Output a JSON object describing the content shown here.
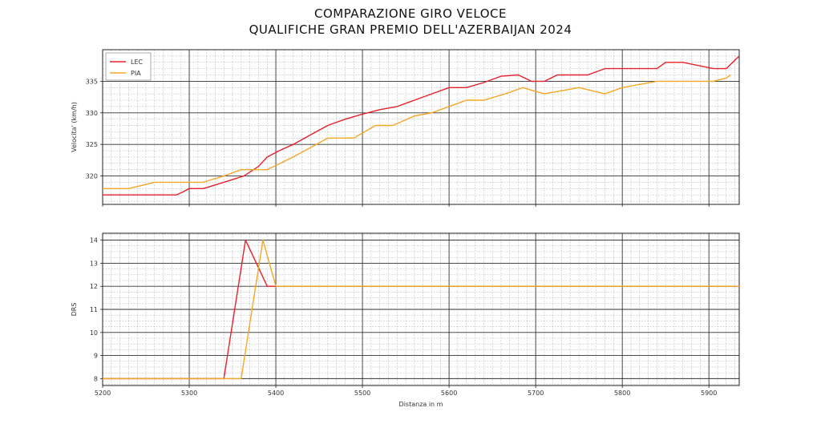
{
  "title": {
    "line1": "COMPARAZIONE GIRO VELOCE",
    "line2": "QUALIFICHE GRAN PREMIO DELL'AZERBAIJAN 2024"
  },
  "colors": {
    "LEC": "#e8202a",
    "PIA": "#f5a623"
  },
  "chart_data": [
    {
      "type": "line",
      "ylabel": "Velocita' (km/h)",
      "xlim": [
        5200,
        5935
      ],
      "ylim": [
        315.5,
        340
      ],
      "xticks": [
        5200,
        5300,
        5400,
        5500,
        5600,
        5700,
        5800,
        5900
      ],
      "yticks": [
        320,
        325,
        330,
        335
      ],
      "grid": true,
      "legend": {
        "placement": "top-left",
        "entries": [
          "LEC",
          "PIA"
        ]
      },
      "series": [
        {
          "name": "LEC",
          "x": [
            5200,
            5285,
            5293,
            5300,
            5316,
            5340,
            5363,
            5380,
            5390,
            5404,
            5420,
            5440,
            5460,
            5480,
            5500,
            5520,
            5540,
            5560,
            5580,
            5600,
            5620,
            5640,
            5660,
            5680,
            5695,
            5710,
            5725,
            5760,
            5780,
            5810,
            5840,
            5850,
            5870,
            5905,
            5920,
            5935
          ],
          "y": [
            317,
            317,
            317.5,
            318,
            318,
            319,
            320,
            321.5,
            323,
            324,
            325,
            326.5,
            328,
            329,
            329.8,
            330.5,
            331,
            332,
            333,
            334,
            334,
            334.8,
            335.8,
            336,
            335,
            335,
            336,
            336,
            337,
            337,
            337,
            338,
            338,
            337,
            337,
            339
          ]
        },
        {
          "name": "PIA",
          "x": [
            5200,
            5230,
            5260,
            5285,
            5316,
            5340,
            5360,
            5390,
            5420,
            5440,
            5460,
            5490,
            5515,
            5535,
            5560,
            5580,
            5600,
            5620,
            5640,
            5665,
            5685,
            5710,
            5730,
            5750,
            5780,
            5800,
            5820,
            5840,
            5880,
            5905,
            5920,
            5925
          ],
          "y": [
            318,
            318,
            319,
            319,
            319,
            320,
            321,
            321,
            323,
            324.5,
            326,
            326,
            328,
            328,
            329.5,
            330,
            331,
            332,
            332,
            333,
            334,
            333,
            333.5,
            334,
            333,
            334,
            334.5,
            335,
            335,
            335,
            335.5,
            336
          ]
        }
      ]
    },
    {
      "type": "line",
      "xlabel": "Distanza in m",
      "ylabel": "DRS",
      "xlim": [
        5200,
        5935
      ],
      "ylim": [
        7.7,
        14.3
      ],
      "xticks": [
        5200,
        5300,
        5400,
        5500,
        5600,
        5700,
        5800,
        5900
      ],
      "yticks": [
        8,
        9,
        10,
        11,
        12,
        13,
        14
      ],
      "grid": true,
      "series": [
        {
          "name": "LEC",
          "x": [
            5200,
            5340,
            5365,
            5390,
            5400,
            5935
          ],
          "y": [
            8,
            8,
            14,
            12,
            12,
            12
          ]
        },
        {
          "name": "PIA",
          "x": [
            5200,
            5360,
            5385,
            5400,
            5935
          ],
          "y": [
            8,
            8,
            14,
            12,
            12
          ]
        }
      ]
    }
  ]
}
